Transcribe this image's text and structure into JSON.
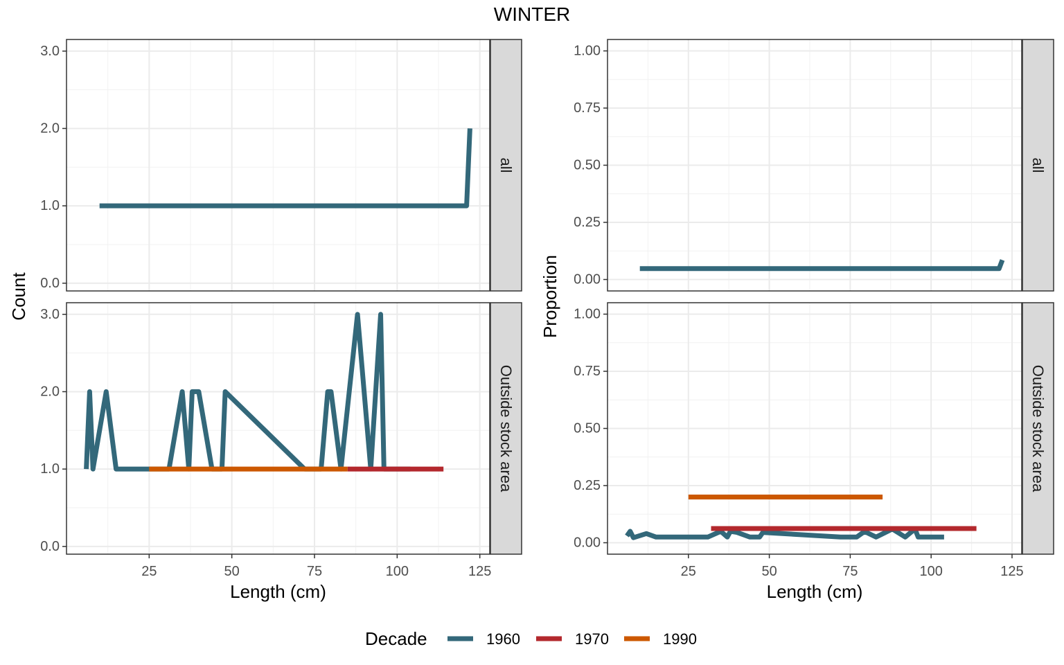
{
  "chart_data": {
    "type": "line",
    "title": "WINTER",
    "x_label": "Length (cm)",
    "x_range": [
      0,
      128
    ],
    "x_ticks": [
      25,
      50,
      75,
      100,
      125
    ],
    "facet_rows": [
      "all",
      "Outside stock area"
    ],
    "legend": {
      "title": "Decade",
      "placement": "bottom",
      "entries": [
        {
          "name": "1960",
          "color": "#33687A"
        },
        {
          "name": "1970",
          "color": "#B3282D"
        },
        {
          "name": "1990",
          "color": "#CC5800"
        }
      ]
    },
    "panels": [
      {
        "id": "count",
        "y_label": "Count",
        "y_range": [
          -0.1,
          3.15
        ],
        "y_ticks": [
          0,
          1,
          2,
          3
        ],
        "y_tick_labels": [
          "0.0",
          "1.0",
          "2.0",
          "3.0"
        ],
        "rows": [
          {
            "facet": "all",
            "series": [
              {
                "name": "1960",
                "x": [
                  10,
                  121,
                  122
                ],
                "y": [
                  1,
                  1,
                  2
                ]
              }
            ]
          },
          {
            "facet": "Outside stock area",
            "series": [
              {
                "name": "1960",
                "x": [
                  6,
                  7,
                  8,
                  12,
                  15,
                  24,
                  31,
                  35,
                  37,
                  38,
                  40,
                  44,
                  47,
                  48,
                  72,
                  77,
                  79,
                  80,
                  83,
                  88,
                  92,
                  95,
                  96,
                  104
                ],
                "y": [
                  1,
                  2,
                  1,
                  2,
                  1,
                  1,
                  1,
                  2,
                  1,
                  2,
                  2,
                  1,
                  1,
                  2,
                  1,
                  1,
                  2,
                  2,
                  1,
                  3,
                  1,
                  3,
                  1,
                  1
                ]
              },
              {
                "name": "1970",
                "x": [
                  85,
                  114
                ],
                "y": [
                  1,
                  1
                ]
              },
              {
                "name": "1990",
                "x": [
                  25,
                  85
                ],
                "y": [
                  1,
                  1
                ]
              }
            ]
          }
        ]
      },
      {
        "id": "proportion",
        "y_label": "Proportion",
        "y_range": [
          -0.05,
          1.05
        ],
        "y_ticks": [
          0,
          0.25,
          0.5,
          0.75,
          1
        ],
        "y_tick_labels": [
          "0.00",
          "0.25",
          "0.50",
          "0.75",
          "1.00"
        ],
        "rows": [
          {
            "facet": "all",
            "series": [
              {
                "name": "1960",
                "x": [
                  10,
                  121,
                  122
                ],
                "y": [
                  0.048,
                  0.048,
                  0.085
                ]
              }
            ]
          },
          {
            "facet": "Outside stock area",
            "series": [
              {
                "name": "1960",
                "x": [
                  6,
                  7,
                  8,
                  12,
                  15,
                  24,
                  31,
                  35,
                  37,
                  38,
                  40,
                  44,
                  47,
                  48,
                  72,
                  77,
                  79,
                  80,
                  83,
                  88,
                  92,
                  95,
                  96,
                  104
                ],
                "y": [
                  0.03,
                  0.05,
                  0.022,
                  0.04,
                  0.025,
                  0.025,
                  0.025,
                  0.05,
                  0.025,
                  0.05,
                  0.045,
                  0.025,
                  0.025,
                  0.045,
                  0.025,
                  0.025,
                  0.045,
                  0.045,
                  0.025,
                  0.06,
                  0.025,
                  0.06,
                  0.025,
                  0.025
                ]
              },
              {
                "name": "1970",
                "x": [
                  32,
                  114
                ],
                "y": [
                  0.062,
                  0.062
                ]
              },
              {
                "name": "1990",
                "x": [
                  25,
                  85
                ],
                "y": [
                  0.2,
                  0.2
                ]
              }
            ]
          }
        ]
      }
    ]
  }
}
